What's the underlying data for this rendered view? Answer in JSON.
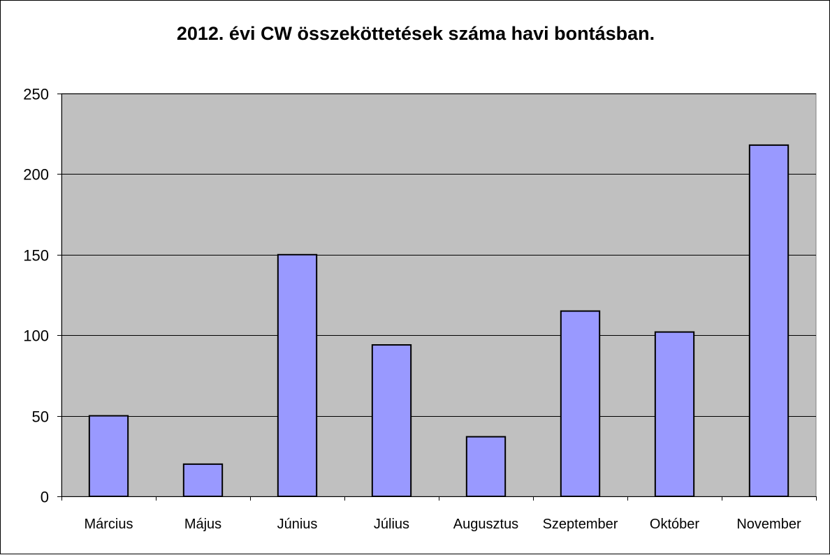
{
  "chart_data": {
    "type": "bar",
    "title": "2012. évi CW összeköttetések száma havi bontásban.",
    "categories": [
      "Március",
      "Május",
      "Június",
      "Július",
      "Augusztus",
      "Szeptember",
      "Október",
      "November"
    ],
    "values": [
      50,
      20,
      150,
      94,
      37,
      115,
      102,
      218
    ],
    "yticks": [
      "0",
      "50",
      "100",
      "150",
      "200",
      "250"
    ],
    "ylim": [
      0,
      250
    ],
    "grid": true,
    "legend": "none",
    "colors": {
      "bar_fill": "#9999ff",
      "bar_stroke": "#000000",
      "plot_background": "#c0c0c0",
      "gridline": "#000000"
    }
  }
}
